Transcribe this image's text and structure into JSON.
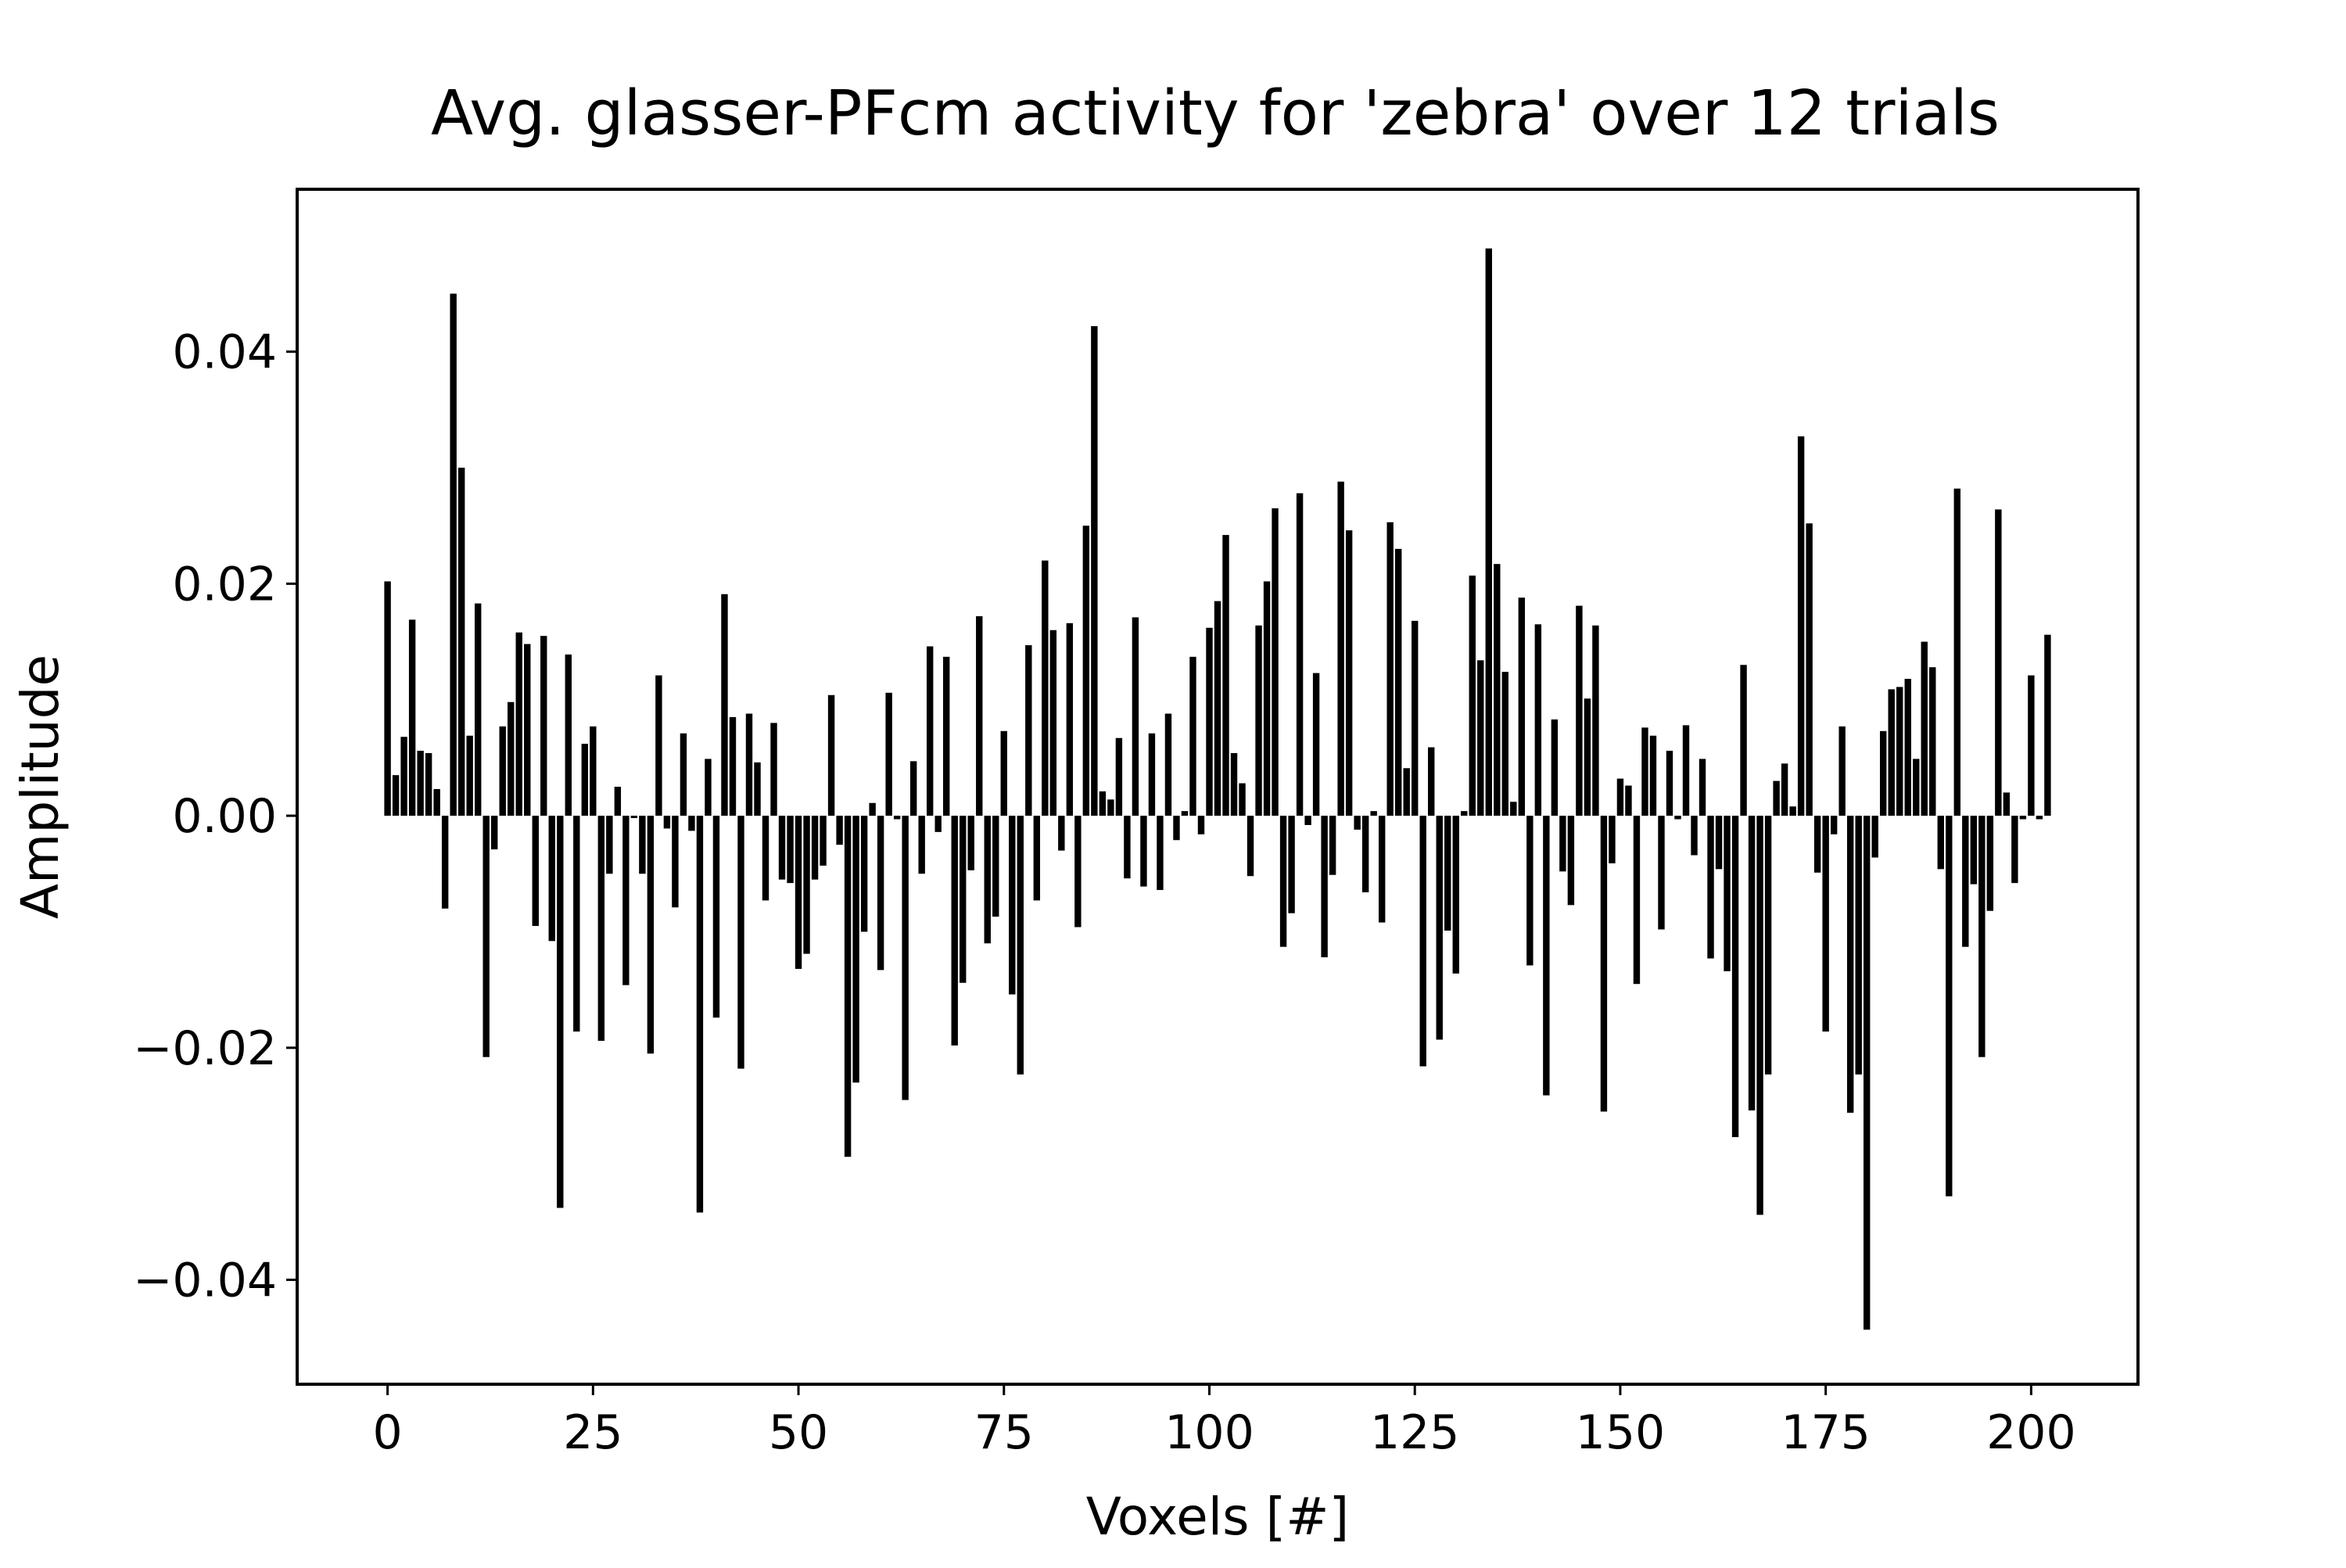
{
  "chart_data": {
    "type": "bar",
    "title": "Avg. glasser-PFcm activity for 'zebra' over 12 trials",
    "xlabel": "Voxels [#]",
    "ylabel": "Amplitude",
    "xlim": [
      -11,
      213
    ],
    "ylim": [
      -0.049,
      0.054
    ],
    "xticks": [
      0,
      25,
      50,
      75,
      100,
      125,
      150,
      175,
      200
    ],
    "xtick_labels": [
      "0",
      "25",
      "50",
      "75",
      "100",
      "125",
      "150",
      "175",
      "200"
    ],
    "yticks": [
      -0.04,
      -0.02,
      0.0,
      0.02,
      0.04
    ],
    "ytick_labels": [
      "−0.04",
      "−0.02",
      "0.00",
      "0.02",
      "0.04"
    ],
    "grid": false,
    "bar_color": "#000000",
    "x": [
      0,
      1,
      2,
      3,
      4,
      5,
      6,
      7,
      8,
      9,
      10,
      11,
      12,
      13,
      14,
      15,
      16,
      17,
      18,
      19,
      20,
      21,
      22,
      23,
      24,
      25,
      26,
      27,
      28,
      29,
      30,
      31,
      32,
      33,
      34,
      35,
      36,
      37,
      38,
      39,
      40,
      41,
      42,
      43,
      44,
      45,
      46,
      47,
      48,
      49,
      50,
      51,
      52,
      53,
      54,
      55,
      56,
      57,
      58,
      59,
      60,
      61,
      62,
      63,
      64,
      65,
      66,
      67,
      68,
      69,
      70,
      71,
      72,
      73,
      74,
      75,
      76,
      77,
      78,
      79,
      80,
      81,
      82,
      83,
      84,
      85,
      86,
      87,
      88,
      89,
      90,
      91,
      92,
      93,
      94,
      95,
      96,
      97,
      98,
      99,
      100,
      101,
      102,
      103,
      104,
      105,
      106,
      107,
      108,
      109,
      110,
      111,
      112,
      113,
      114,
      115,
      116,
      117,
      118,
      119,
      120,
      121,
      122,
      123,
      124,
      125,
      126,
      127,
      128,
      129,
      130,
      131,
      132,
      133,
      134,
      135,
      136,
      137,
      138,
      139,
      140,
      141,
      142,
      143,
      144,
      145,
      146,
      147,
      148,
      149,
      150,
      151,
      152,
      153,
      154,
      155,
      156,
      157,
      158,
      159,
      160,
      161,
      162,
      163,
      164,
      165,
      166,
      167,
      168,
      169,
      170,
      171,
      172,
      173,
      174,
      175,
      176,
      177,
      178,
      179,
      180,
      181,
      182,
      183,
      184,
      185,
      186,
      187,
      188,
      189,
      190,
      191,
      192,
      193,
      194,
      195,
      196,
      197,
      198,
      199,
      200,
      201,
      202
    ],
    "values": [
      0.0202,
      0.0035,
      0.0068,
      0.0169,
      0.0056,
      0.0054,
      0.0023,
      -0.008,
      0.045,
      0.03,
      0.0069,
      0.0183,
      -0.0208,
      -0.0029,
      0.0077,
      0.0098,
      0.0158,
      0.0148,
      -0.0095,
      0.0155,
      -0.0108,
      -0.0338,
      0.0139,
      -0.0186,
      0.0062,
      0.0077,
      -0.0194,
      -0.005,
      0.0025,
      -0.0146,
      -0.0002,
      -0.005,
      -0.0205,
      0.0121,
      -0.0011,
      -0.0079,
      0.0071,
      -0.0013,
      -0.0342,
      0.0049,
      -0.0174,
      0.0191,
      0.0085,
      -0.0218,
      0.0088,
      0.0046,
      -0.0073,
      0.008,
      -0.0055,
      -0.0058,
      -0.0132,
      -0.0119,
      -0.0055,
      -0.0043,
      0.0104,
      -0.0025,
      -0.0294,
      -0.023,
      -0.01,
      0.0011,
      -0.0133,
      0.0106,
      -0.0003,
      -0.0245,
      0.0047,
      -0.005,
      0.0146,
      -0.0014,
      0.0137,
      -0.0198,
      -0.0144,
      -0.0047,
      0.0172,
      -0.011,
      -0.0087,
      0.0073,
      -0.0154,
      -0.0223,
      0.0147,
      -0.0073,
      0.022,
      0.016,
      -0.003,
      0.0166,
      -0.0096,
      0.025,
      0.0422,
      0.0021,
      0.0014,
      0.0067,
      -0.0054,
      0.0171,
      -0.0061,
      0.0071,
      -0.0064,
      0.0088,
      -0.0021,
      0.0004,
      0.0137,
      -0.0016,
      0.0162,
      0.0185,
      0.0242,
      0.0054,
      0.0028,
      -0.0052,
      0.0164,
      0.0202,
      0.0265,
      -0.0113,
      -0.0084,
      0.0278,
      -0.0008,
      0.0123,
      -0.0122,
      -0.0051,
      0.0288,
      0.0246,
      -0.0012,
      -0.0066,
      0.0004,
      -0.0092,
      0.0253,
      0.023,
      0.0041,
      0.0168,
      -0.0216,
      0.0059,
      -0.0193,
      -0.0099,
      -0.0136,
      0.0004,
      0.0207,
      0.0134,
      0.0489,
      0.0217,
      0.0124,
      0.0012,
      0.0188,
      -0.0129,
      0.0165,
      -0.0241,
      0.0083,
      -0.0048,
      -0.0077,
      0.0181,
      0.0101,
      0.0164,
      -0.0255,
      -0.0041,
      0.0032,
      0.0026,
      -0.0145,
      0.0076,
      0.0069,
      -0.0098,
      0.0056,
      -0.0003,
      0.0078,
      -0.0034,
      0.0049,
      -0.0123,
      -0.0046,
      -0.0134,
      -0.0277,
      0.013,
      -0.0254,
      -0.0344,
      -0.0223,
      0.003,
      0.0045,
      0.0008,
      0.0327,
      0.0252,
      -0.0049,
      -0.0186,
      -0.0016,
      0.0077,
      -0.0256,
      -0.0223,
      -0.0443,
      -0.0036,
      0.0073,
      0.0109,
      0.0111,
      0.0118,
      0.0049,
      0.015,
      0.0128,
      -0.0046,
      -0.0328,
      0.0282,
      -0.0113,
      -0.0059,
      -0.0208,
      -0.0082,
      0.0264,
      0.002,
      -0.0058,
      -0.0003,
      0.0121,
      -0.0003,
      0.0156
    ]
  }
}
